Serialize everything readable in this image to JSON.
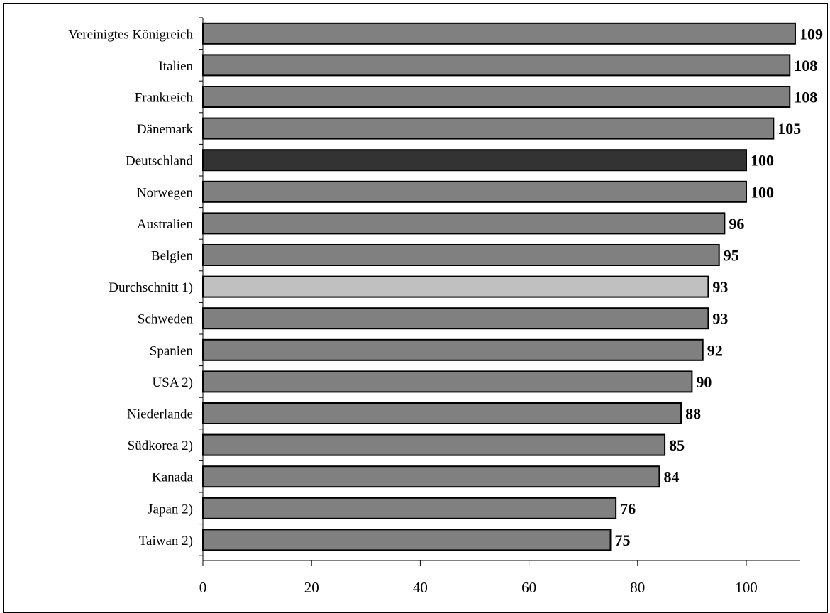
{
  "chart_data": {
    "type": "bar",
    "orientation": "horizontal",
    "title": "",
    "xlabel": "",
    "ylabel": "",
    "categories": [
      "Vereinigtes Königreich",
      "Italien",
      "Frankreich",
      "Dänemark",
      "Deutschland",
      "Norwegen",
      "Australien",
      "Belgien",
      "Durchschnitt 1)",
      "Schweden",
      "Spanien",
      "USA 2)",
      "Niederlande",
      "Südkorea 2)",
      "Kanada",
      "Japan 2)",
      "Taiwan 2)"
    ],
    "values": [
      109,
      108,
      108,
      105,
      100,
      100,
      96,
      95,
      93,
      93,
      92,
      90,
      88,
      85,
      84,
      76,
      75
    ],
    "value_labels": [
      "109",
      "108",
      "108",
      "105",
      "100",
      "100",
      "96",
      "95",
      "93",
      "93",
      "92",
      "90",
      "88",
      "85",
      "84",
      "76",
      "75"
    ],
    "highlight": {
      "Deutschland": "#333333",
      "Durchschnitt 1)": "#c0c0c0"
    },
    "bar_color": "#808080",
    "xlim": [
      0,
      110
    ],
    "xticks": [
      0,
      20,
      40,
      60,
      80,
      100
    ],
    "xtick_labels": [
      "0",
      "20",
      "40",
      "60",
      "80",
      "100"
    ],
    "grid": false,
    "legend": "none"
  }
}
